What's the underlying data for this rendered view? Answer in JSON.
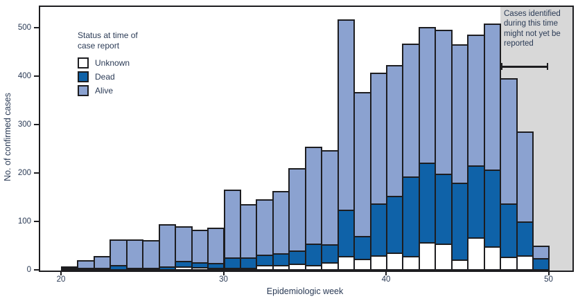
{
  "y_axis": {
    "title": "No. of confirmed cases",
    "ticks": [
      0,
      100,
      200,
      300,
      400,
      500
    ]
  },
  "x_axis": {
    "title": "Epidemiologic week",
    "ticks": [
      20,
      30,
      40,
      50
    ]
  },
  "legend": {
    "title": "Status at time of case report",
    "items": [
      {
        "label": "Unknown",
        "color": "#ffffff"
      },
      {
        "label": "Dead",
        "color": "#0f62a8"
      },
      {
        "label": "Alive",
        "color": "#8ba2d0"
      }
    ]
  },
  "annotation": {
    "text": "Cases identified during this time might not yet be reported"
  },
  "colors": {
    "unknown": "#ffffff",
    "dead": "#0f62a8",
    "alive": "#8ba2d0",
    "outline": "#1d1d20",
    "shaded": "#d8d8d8"
  },
  "chart_data": {
    "type": "bar",
    "stacked": true,
    "title": "",
    "xlabel": "Epidemiologic week",
    "ylabel": "No. of confirmed cases",
    "ylim": [
      0,
      540
    ],
    "grid": false,
    "legend_position": "upper-left-inside",
    "categories": [
      20,
      21,
      22,
      23,
      24,
      25,
      26,
      27,
      28,
      29,
      30,
      31,
      32,
      33,
      34,
      35,
      36,
      37,
      38,
      39,
      40,
      41,
      42,
      43,
      44,
      45,
      46,
      47,
      48,
      49
    ],
    "series": [
      {
        "name": "Unknown",
        "color": "#ffffff",
        "values": [
          0,
          0,
          0,
          0,
          0,
          0,
          0,
          9,
          7,
          2,
          5,
          3,
          12,
          11,
          15,
          12,
          17,
          30,
          24,
          31,
          37,
          30,
          59,
          56,
          23,
          68,
          50,
          29,
          31,
          0
        ]
      },
      {
        "name": "Dead",
        "color": "#0f62a8",
        "values": [
          1,
          2,
          6,
          11,
          2,
          6,
          9,
          14,
          13,
          13,
          25,
          25,
          24,
          28,
          29,
          47,
          40,
          98,
          50,
          110,
          120,
          167,
          167,
          147,
          162,
          152,
          161,
          112,
          74,
          26
        ]
      },
      {
        "name": "Alive",
        "color": "#8ba2d0",
        "values": [
          4,
          18,
          27,
          56,
          62,
          60,
          89,
          74,
          70,
          75,
          142,
          112,
          117,
          131,
          173,
          203,
          198,
          397,
          301,
          274,
          273,
          277,
          283,
          300,
          288,
          273,
          305,
          262,
          188,
          28
        ]
      }
    ],
    "totals": [
      5,
      20,
      33,
      67,
      64,
      66,
      98,
      97,
      90,
      90,
      172,
      140,
      153,
      170,
      217,
      262,
      255,
      525,
      375,
      415,
      430,
      474,
      509,
      503,
      473,
      493,
      516,
      403,
      293,
      54
    ],
    "shaded_region": {
      "from_week": 47,
      "to_week": 50.4,
      "note": "Cases identified during this time might not yet be reported"
    }
  }
}
